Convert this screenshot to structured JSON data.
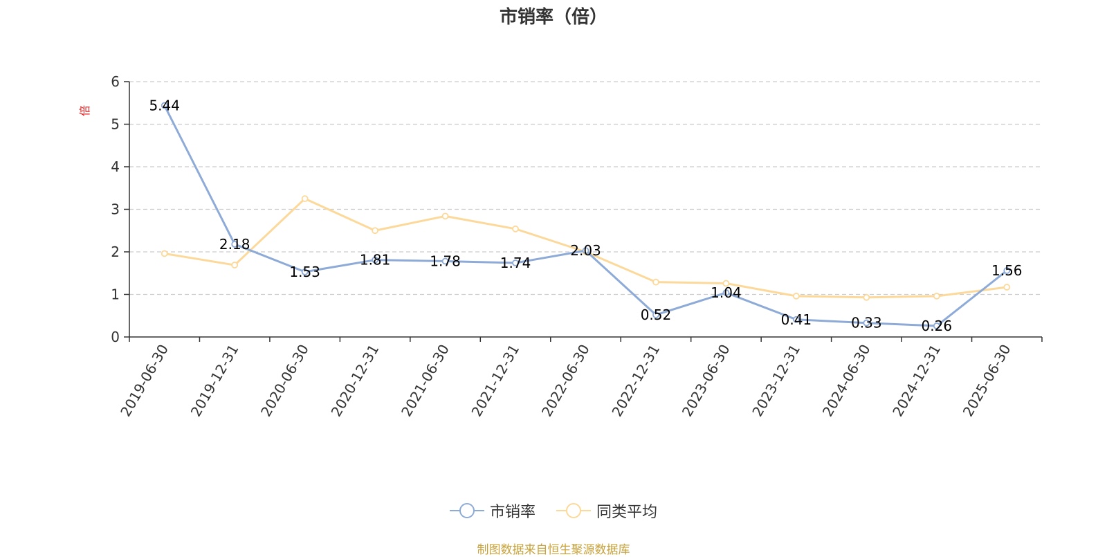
{
  "chart_data": {
    "type": "line",
    "title": "市销率（倍）",
    "ylabel": "倍",
    "xlabel": "",
    "ylim": [
      0,
      6
    ],
    "yticks": [
      0,
      1,
      2,
      3,
      4,
      5,
      6
    ],
    "grid": true,
    "legend_position": "bottom",
    "categories": [
      "2019-06-30",
      "2019-12-31",
      "2020-06-30",
      "2020-12-31",
      "2021-06-30",
      "2021-12-31",
      "2022-06-30",
      "2022-12-31",
      "2023-06-30",
      "2023-12-31",
      "2024-06-30",
      "2024-12-31",
      "2025-06-30"
    ],
    "series": [
      {
        "name": "市销率",
        "color": "#8eabd8",
        "values": [
          5.44,
          2.18,
          1.53,
          1.81,
          1.78,
          1.74,
          2.03,
          0.52,
          1.04,
          0.41,
          0.33,
          0.26,
          1.56
        ],
        "labels": [
          "5.44",
          "2.18",
          "1.53",
          "1.81",
          "1.78",
          "1.74",
          "2.03",
          "0.52",
          "1.04",
          "0.41",
          "0.33",
          "0.26",
          "1.56"
        ]
      },
      {
        "name": "同类平均",
        "color": "#fcd99a",
        "values": [
          1.96,
          1.69,
          3.25,
          2.5,
          2.84,
          2.54,
          2.0,
          1.29,
          1.26,
          0.96,
          0.93,
          0.96,
          1.17
        ]
      }
    ],
    "source": "制图数据来自恒生聚源数据库",
    "source_color": "#c8a23a",
    "unit_color": "#e02020"
  }
}
